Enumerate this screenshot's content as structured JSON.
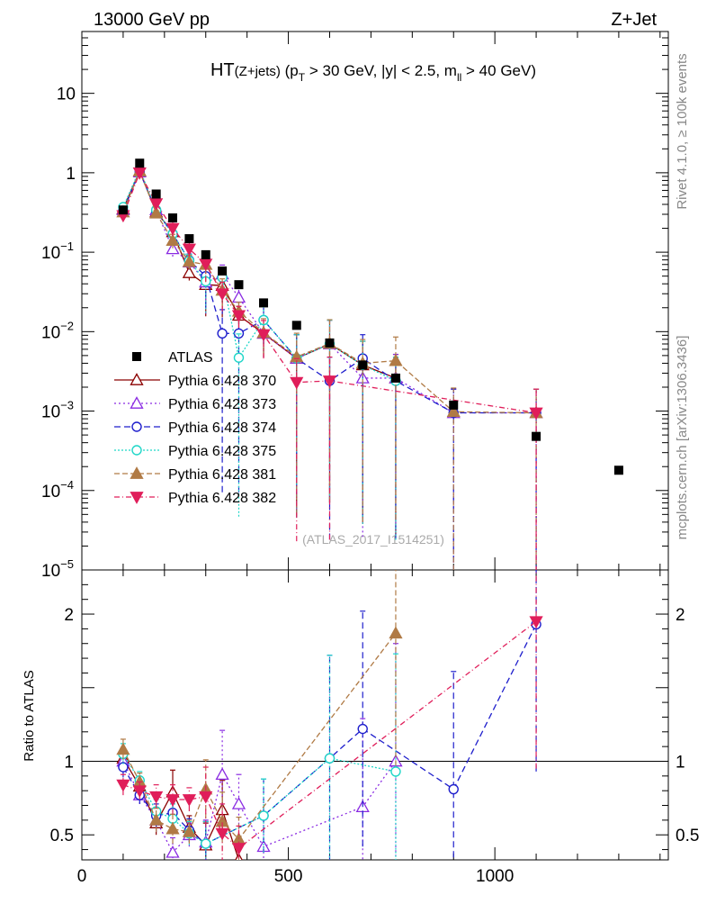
{
  "header": {
    "left": "13000 GeV pp",
    "right": "Z+Jet"
  },
  "side_labels": {
    "rivet": "Rivet 4.1.0, ≥ 100k events",
    "mcplots": "mcplots.cern.ch [arXiv:1306.3436]"
  },
  "title": {
    "main": "HT",
    "sub": "(Z+jets)",
    "rest": " (p",
    "pt_sub": "T",
    "rest2": " > 30 GeV, |y| < 2.5, m",
    "m_sub": "ll",
    "rest3": " > 40 GeV)"
  },
  "watermark": "(ATLAS_2017_I1514251)",
  "ratio_ylabel": "Ratio to ATLAS",
  "colors": {
    "ATLAS": "#000000",
    "p370": "#8b0000",
    "p373": "#8a2be2",
    "p374": "#1e1ecc",
    "p375": "#1fd6c8",
    "p381": "#b07a45",
    "p382": "#e01e5a"
  },
  "chart_data": {
    "type": "scatter",
    "xlim": [
      0,
      1420
    ],
    "main_ylim": [
      1e-05,
      60
    ],
    "main_yscale": "log",
    "ratio_ylim": [
      0.33,
      2.3
    ],
    "x_ticks": [
      {
        "v": 0,
        "label": "0"
      },
      {
        "v": 500,
        "label": "500"
      },
      {
        "v": 1000,
        "label": "1000"
      }
    ],
    "main_y_ticks": [
      {
        "v": 10,
        "b": "10",
        "e": ""
      },
      {
        "v": 1,
        "b": "1",
        "e": ""
      },
      {
        "v": 0.1,
        "b": "10",
        "e": "−1"
      },
      {
        "v": 0.01,
        "b": "10",
        "e": "−2"
      },
      {
        "v": 0.001,
        "b": "10",
        "e": "−3"
      },
      {
        "v": 0.0001,
        "b": "10",
        "e": "−4"
      },
      {
        "v": 1e-05,
        "b": "10",
        "e": "−5"
      }
    ],
    "ratio_y_ticks": [
      {
        "v": 0.5,
        "label": "0.5"
      },
      {
        "v": 1,
        "label": "1"
      },
      {
        "v": 2,
        "label": "2"
      }
    ],
    "atlas": {
      "name": "ATLAS",
      "x": [
        100,
        140,
        180,
        220,
        260,
        300,
        340,
        380,
        440,
        520,
        600,
        680,
        760,
        900,
        1100,
        1300
      ],
      "y": [
        0.34,
        1.32,
        0.54,
        0.27,
        0.148,
        0.093,
        0.058,
        0.039,
        0.023,
        0.012,
        0.0072,
        0.0038,
        0.0026,
        0.00119,
        0.00048,
        0.00018
      ]
    },
    "series": [
      {
        "name": "Pythia 6.428 370",
        "key": "p370",
        "marker": "tri-up-open",
        "dash": "",
        "x": [
          100,
          140,
          180,
          220,
          260,
          300,
          340,
          380,
          440,
          520,
          600,
          680,
          760
        ],
        "y": [
          0.35,
          1.05,
          0.32,
          0.18,
          0.055,
          0.039,
          0.038,
          0.016,
          0.0095,
          0.0046,
          0.007,
          0.0038,
          0.0026
        ],
        "err": [
          0.06,
          0.06,
          0.08,
          0.2,
          0.2,
          0.6,
          0.6,
          0.3,
          0.5,
          0.99,
          0.99,
          0.99,
          0.99
        ],
        "ratio_x": [
          100,
          140,
          180,
          220,
          260,
          300,
          340,
          380
        ],
        "ratio": [
          1.02,
          0.83,
          0.58,
          0.79,
          0.55,
          0.43,
          0.67,
          0.33
        ],
        "ratio_err": [
          0.07,
          0.06,
          0.08,
          0.15,
          0.08,
          0.15,
          0.2,
          0.15
        ]
      },
      {
        "name": "Pythia 6.428 373",
        "key": "p373",
        "marker": "tri-up-open",
        "dash": "2,3",
        "x": [
          100,
          140,
          180,
          220,
          260,
          300,
          340,
          380,
          440,
          520,
          600,
          680,
          760,
          900,
          1100
        ],
        "y": [
          0.34,
          1.02,
          0.34,
          0.11,
          0.075,
          0.042,
          0.053,
          0.027,
          0.0095,
          0.0046,
          0.007,
          0.0026,
          0.0026,
          0.00095,
          0.00095
        ],
        "err": [
          0.06,
          0.06,
          0.08,
          0.2,
          0.2,
          0.6,
          0.3,
          0.3,
          0.5,
          0.99,
          0.99,
          0.99,
          0.99,
          0.99,
          0.99
        ],
        "ratio_x": [
          100,
          140,
          180,
          220,
          260,
          300,
          340,
          380,
          440,
          680,
          760
        ],
        "ratio": [
          1.0,
          0.77,
          0.6,
          0.38,
          0.5,
          0.45,
          0.91,
          0.71,
          0.42,
          0.69,
          1.0
        ],
        "ratio_err": [
          0.07,
          0.06,
          0.08,
          0.1,
          0.08,
          0.15,
          0.3,
          0.2,
          0.2,
          0.6,
          0.8
        ]
      },
      {
        "name": "Pythia 6.428 374",
        "key": "p374",
        "marker": "circle-open",
        "dash": "7,4",
        "x": [
          100,
          140,
          180,
          220,
          260,
          300,
          340,
          380,
          440,
          520,
          600,
          680,
          760,
          900,
          1100
        ],
        "y": [
          0.33,
          1.03,
          0.33,
          0.17,
          0.079,
          0.05,
          0.0095,
          0.0095,
          0.014,
          0.0046,
          0.0024,
          0.0046,
          0.0024,
          0.00095,
          0.00095
        ],
        "err": [
          0.06,
          0.06,
          0.08,
          0.2,
          0.2,
          0.6,
          0.99,
          0.99,
          0.5,
          0.99,
          0.99,
          0.99,
          0.99,
          0.99,
          0.99
        ],
        "ratio_x": [
          100,
          140,
          180,
          220,
          260,
          300,
          440,
          600,
          680,
          900,
          1100
        ],
        "ratio": [
          0.96,
          0.77,
          0.63,
          0.65,
          0.53,
          0.44,
          0.63,
          1.02,
          1.22,
          0.81,
          1.93
        ],
        "ratio_err": [
          0.07,
          0.06,
          0.08,
          0.1,
          0.08,
          0.15,
          0.25,
          0.7,
          0.8,
          0.8,
          1.0
        ]
      },
      {
        "name": "Pythia 6.428 375",
        "key": "p375",
        "marker": "circle-open",
        "dash": "2,2",
        "x": [
          100,
          140,
          180,
          220,
          260,
          300,
          340,
          380,
          440,
          520,
          600,
          680,
          760
        ],
        "y": [
          0.37,
          1.1,
          0.34,
          0.17,
          0.078,
          0.043,
          0.048,
          0.0047,
          0.014,
          0.0046,
          0.007,
          0.0038,
          0.0024
        ],
        "err": [
          0.06,
          0.06,
          0.08,
          0.2,
          0.2,
          0.6,
          0.3,
          0.99,
          0.5,
          0.99,
          0.99,
          0.99,
          0.99
        ],
        "ratio_x": [
          100,
          140,
          180,
          220,
          260,
          300,
          440,
          600,
          760
        ],
        "ratio": [
          1.05,
          0.87,
          0.66,
          0.61,
          0.51,
          0.44,
          0.63,
          1.02,
          0.93
        ],
        "ratio_err": [
          0.07,
          0.06,
          0.08,
          0.1,
          0.08,
          0.15,
          0.25,
          0.7,
          0.8
        ]
      },
      {
        "name": "Pythia 6.428 381",
        "key": "p381",
        "marker": "tri-up-filled",
        "dash": "6,3",
        "x": [
          100,
          140,
          180,
          220,
          260,
          300,
          340,
          380,
          440,
          520,
          600,
          680,
          760,
          900,
          1100
        ],
        "y": [
          0.32,
          1.05,
          0.31,
          0.14,
          0.076,
          0.07,
          0.033,
          0.018,
          0.0097,
          0.0048,
          0.0071,
          0.004,
          0.0043,
          0.00098,
          0.00095
        ],
        "err": [
          0.06,
          0.06,
          0.08,
          0.2,
          0.2,
          0.4,
          0.4,
          0.3,
          0.5,
          0.99,
          0.99,
          0.99,
          0.99,
          0.99,
          0.99
        ],
        "ratio_x": [
          100,
          140,
          180,
          220,
          260,
          300,
          340,
          380,
          760
        ],
        "ratio": [
          1.08,
          0.86,
          0.6,
          0.54,
          0.52,
          0.81,
          0.59,
          0.47,
          1.87
        ],
        "ratio_err": [
          0.07,
          0.06,
          0.08,
          0.1,
          0.08,
          0.2,
          0.2,
          0.15,
          0.9
        ]
      },
      {
        "name": "Pythia 6.428 382",
        "key": "p382",
        "marker": "tri-down-filled",
        "dash": "6,3,1,3",
        "x": [
          100,
          140,
          180,
          220,
          260,
          300,
          340,
          380,
          440,
          520,
          600,
          1100
        ],
        "y": [
          0.29,
          1.0,
          0.41,
          0.2,
          0.11,
          0.071,
          0.03,
          0.016,
          0.0092,
          0.0023,
          0.0024,
          0.00095
        ],
        "err": [
          0.06,
          0.06,
          0.08,
          0.2,
          0.2,
          0.4,
          0.4,
          0.3,
          0.5,
          0.99,
          0.99,
          0.99
        ],
        "ratio_x": [
          100,
          140,
          180,
          220,
          260,
          300,
          340,
          380,
          1100
        ],
        "ratio": [
          0.84,
          0.8,
          0.76,
          0.74,
          0.74,
          0.76,
          0.51,
          0.41,
          1.95
        ],
        "ratio_err": [
          0.07,
          0.06,
          0.08,
          0.1,
          0.08,
          0.2,
          0.2,
          0.15,
          1.0
        ]
      }
    ]
  }
}
